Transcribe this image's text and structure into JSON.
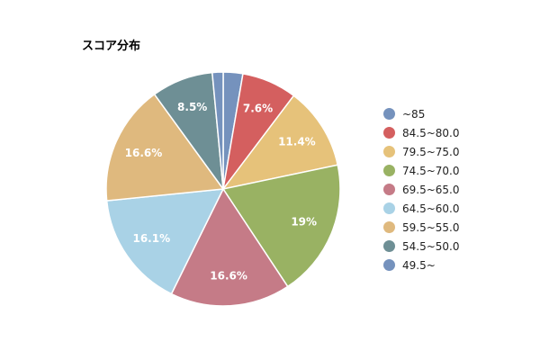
{
  "chart_data": {
    "type": "pie",
    "title": "スコア分布",
    "legend_position": "right",
    "slices": [
      {
        "label": "~85",
        "value": 2.7,
        "display": "",
        "color": "#7592bd"
      },
      {
        "label": "84.5~80.0",
        "value": 7.6,
        "display": "7.6%",
        "color": "#d45f5f"
      },
      {
        "label": "79.5~75.0",
        "value": 11.4,
        "display": "11.4%",
        "color": "#e6c27a"
      },
      {
        "label": "74.5~70.0",
        "value": 19.0,
        "display": "19%",
        "color": "#99b263"
      },
      {
        "label": "69.5~65.0",
        "value": 16.6,
        "display": "16.6%",
        "color": "#c57b87"
      },
      {
        "label": "64.5~60.0",
        "value": 16.1,
        "display": "16.1%",
        "color": "#a9d2e6"
      },
      {
        "label": "59.5~55.0",
        "value": 16.6,
        "display": "16.6%",
        "color": "#dfb97e"
      },
      {
        "label": "54.5~50.0",
        "value": 8.5,
        "display": "8.5%",
        "color": "#6e8f95"
      },
      {
        "label": "49.5~",
        "value": 1.5,
        "display": "",
        "color": "#7592bd"
      }
    ]
  }
}
